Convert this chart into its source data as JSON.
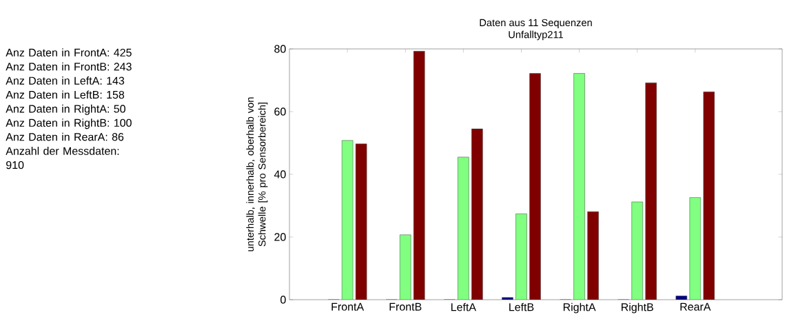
{
  "chart_data": {
    "type": "bar",
    "title": "Daten aus 11 Sequenzen",
    "subtitle": "Unfalltyp211",
    "ylabel": "unterhalb, innerhalb, oberhalb von Schwelle [% pro Sensorbereich]",
    "categories": [
      "FrontA",
      "FrontB",
      "LeftA",
      "LeftB",
      "RightA",
      "RightB",
      "RearA"
    ],
    "series": [
      {
        "color": "#000080",
        "values": [
          0,
          0,
          0,
          0.7,
          0,
          0,
          1.2
        ]
      },
      {
        "color": "#80ff80",
        "values": [
          50.8,
          20.7,
          45.5,
          27.4,
          72.2,
          31.2,
          32.6
        ]
      },
      {
        "color": "#800000",
        "values": [
          49.7,
          79.3,
          54.5,
          72.2,
          28.1,
          69.2,
          66.3
        ]
      }
    ],
    "ylim": [
      0,
      80
    ],
    "yticks": [
      0,
      20,
      40,
      60,
      80
    ],
    "grid": false,
    "annotations": [
      "Anz Daten in FrontA: 425",
      "Anz Daten in FrontB: 243",
      "Anz Daten in LeftA: 143",
      "Anz Daten in LeftB: 158",
      "Anz Daten in RightA: 50",
      "Anz Daten in RightB: 100",
      "Anz Daten in RearA: 86",
      "Anzahl der Messdaten: 910"
    ]
  }
}
